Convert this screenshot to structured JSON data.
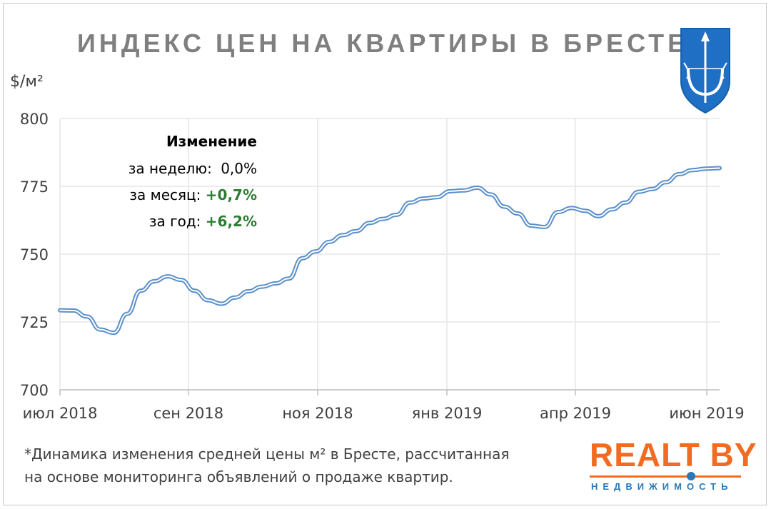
{
  "title": "ИНДЕКС ЦЕН НА КВАРТИРЫ В БРЕСТЕ",
  "unit_label": "$/м²",
  "annotation": {
    "heading": "Изменение",
    "week_label": "за неделю:",
    "week_value": "0,0%",
    "month_label": "за месяц:",
    "month_value": "+0,7%",
    "year_label": "за год:",
    "year_value": "+6,2%"
  },
  "footnote": {
    "line1": "*Динамика изменения средней цены м² в Бресте, рассчитанная",
    "line2": "на основе мониторинга объявлений о продаже квартир."
  },
  "logo": {
    "text": "REALT BY",
    "subtitle": "НЕДВИЖИМОСТЬ"
  },
  "colors": {
    "line": "#5b8fc9",
    "grid": "#e6e6e6",
    "positive": "#2e7d32",
    "title": "#7f7f7f",
    "logo": "#f26b21",
    "coat": "#1f6fc5"
  },
  "icons": [
    "brest-coat-of-arms-icon"
  ],
  "chart_data": {
    "type": "line",
    "title": "ИНДЕКС ЦЕН НА КВАРТИРЫ В БРЕСТЕ",
    "ylabel": "$/м²",
    "xlabel": "",
    "ylim": [
      700,
      800
    ],
    "yticks": [
      "700",
      "725",
      "750",
      "775",
      "800"
    ],
    "xticks": [
      "июл 2018",
      "сен 2018",
      "ноя 2018",
      "янв 2019",
      "апр 2019",
      "июн 2019"
    ],
    "grid": true,
    "legend": "none",
    "series": [
      {
        "values": [
          729.3,
          729.2,
          727.0,
          722.2,
          721.0,
          728.0,
          736.5,
          740.0,
          741.8,
          740.5,
          736.5,
          733.0,
          731.7,
          734.0,
          736.3,
          738.0,
          739.2,
          741.0,
          748.5,
          751.0,
          754.5,
          757.0,
          758.5,
          761.5,
          763.0,
          764.5,
          769.0,
          770.5,
          771.0,
          773.2,
          773.5,
          774.5,
          772.0,
          767.5,
          765.0,
          760.5,
          760.0,
          765.5,
          767.0,
          766.0,
          764.0,
          766.5,
          769.0,
          773.0,
          774.0,
          776.5,
          779.5,
          781.0,
          781.5,
          781.7
        ]
      }
    ]
  }
}
